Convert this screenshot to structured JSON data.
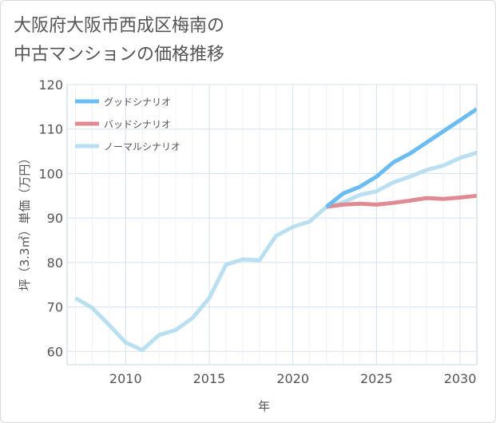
{
  "title_line1": "大阪府大阪市西成区梅南の",
  "title_line2": "中古マンションの価格推移",
  "chart_data": {
    "type": "line",
    "xlabel": "年",
    "ylabel": "坪（3.3㎡）単価（万円）",
    "xlim": [
      2006.5,
      2031
    ],
    "ylim": [
      57,
      120
    ],
    "xticks": [
      2010,
      2015,
      2020,
      2025,
      2030
    ],
    "yticks": [
      60,
      70,
      80,
      90,
      100,
      110,
      120
    ],
    "grid": true,
    "legend_position": "top-left",
    "series": [
      {
        "name": "グッドシナリオ",
        "color": "#6bbcf0",
        "x": [
          2022,
          2023,
          2024,
          2025,
          2026,
          2027,
          2028,
          2029,
          2030,
          2031
        ],
        "y": [
          92.5,
          95.5,
          97.0,
          99.3,
          102.5,
          104.5,
          107.0,
          109.5,
          112.0,
          114.5
        ]
      },
      {
        "name": "バッドシナリオ",
        "color": "#e08a93",
        "x": [
          2022,
          2023,
          2024,
          2025,
          2026,
          2027,
          2028,
          2029,
          2030,
          2031
        ],
        "y": [
          92.5,
          93.0,
          93.2,
          93.0,
          93.4,
          93.9,
          94.5,
          94.3,
          94.6,
          95.0
        ]
      },
      {
        "name": "ノーマルシナリオ",
        "color": "#badff0",
        "x": [
          2007,
          2008,
          2009,
          2010,
          2011,
          2012,
          2013,
          2014,
          2015,
          2016,
          2017,
          2018,
          2019,
          2020,
          2021,
          2022,
          2023,
          2024,
          2025,
          2026,
          2027,
          2028,
          2029,
          2030,
          2031
        ],
        "y": [
          72.0,
          69.8,
          66.0,
          62.0,
          60.3,
          63.7,
          64.8,
          67.5,
          72.0,
          79.5,
          80.7,
          80.5,
          86.0,
          88.0,
          89.2,
          92.5,
          93.5,
          95.2,
          96.0,
          98.0,
          99.3,
          100.8,
          101.8,
          103.5,
          104.7
        ]
      }
    ]
  }
}
